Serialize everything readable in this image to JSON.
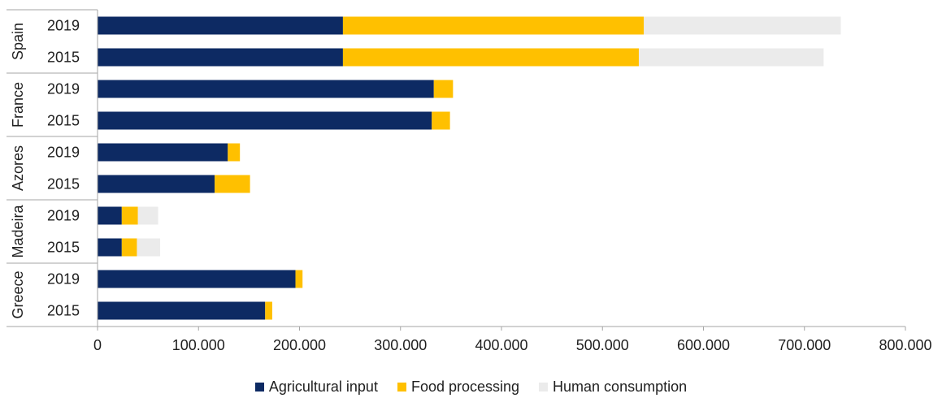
{
  "chart_data": {
    "type": "bar",
    "orientation": "horizontal",
    "stacked": true,
    "groups": [
      {
        "name": "Spain",
        "years": [
          "2019",
          "2015"
        ]
      },
      {
        "name": "France",
        "years": [
          "2019",
          "2015"
        ]
      },
      {
        "name": "Azores",
        "years": [
          "2019",
          "2015"
        ]
      },
      {
        "name": "Madeira",
        "years": [
          "2019",
          "2015"
        ]
      },
      {
        "name": "Greece",
        "years": [
          "2019",
          "2015"
        ]
      }
    ],
    "series": [
      {
        "name": "Agricultural input",
        "color": "#0d2a63",
        "values": [
          243000,
          243000,
          333000,
          331000,
          129000,
          116000,
          24000,
          24000,
          196000,
          166000
        ]
      },
      {
        "name": "Food processing",
        "color": "#ffc000",
        "values": [
          298000,
          293000,
          19000,
          18000,
          12000,
          35000,
          16000,
          15000,
          7000,
          7000
        ]
      },
      {
        "name": "Human consumption",
        "color": "#ebebeb",
        "values": [
          195000,
          183000,
          0,
          0,
          0,
          0,
          20000,
          23000,
          0,
          0
        ]
      }
    ],
    "xlim": [
      0,
      800000
    ],
    "xticks": [
      "0",
      "100.000",
      "200.000",
      "300.000",
      "400.000",
      "500.000",
      "600.000",
      "700.000",
      "800.000"
    ],
    "grid": false,
    "legend": "bottom"
  }
}
